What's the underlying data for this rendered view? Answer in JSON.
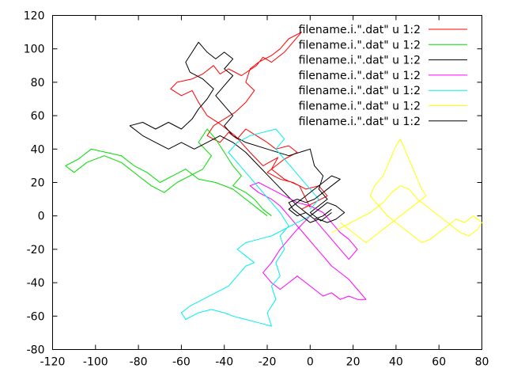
{
  "chart_data": {
    "type": "line",
    "title": "",
    "xlabel": "",
    "ylabel": "",
    "xlim": [
      -120,
      80
    ],
    "ylim": [
      -80,
      120
    ],
    "grid": false,
    "legend_position": "top-right",
    "x_ticks": [
      "-120",
      "-100",
      "-80",
      "-60",
      "-40",
      "-20",
      "0",
      "20",
      "40",
      "60",
      "80"
    ],
    "y_ticks": [
      "-80",
      "-60",
      "-40",
      "-20",
      "0",
      "20",
      "40",
      "60",
      "80",
      "100",
      "120"
    ],
    "series": [
      {
        "name": "filename.i.\".dat\" u 1:2",
        "color": "#ff0000",
        "points": [
          [
            0,
            5
          ],
          [
            -5,
            18
          ],
          [
            -12,
            22
          ],
          [
            -18,
            28
          ],
          [
            -15,
            35
          ],
          [
            -22,
            30
          ],
          [
            -28,
            38
          ],
          [
            -35,
            48
          ],
          [
            -42,
            55
          ],
          [
            -48,
            60
          ],
          [
            -52,
            68
          ],
          [
            -55,
            75
          ],
          [
            -60,
            72
          ],
          [
            -65,
            76
          ],
          [
            -62,
            80
          ],
          [
            -55,
            82
          ],
          [
            -50,
            85
          ],
          [
            -45,
            90
          ],
          [
            -42,
            85
          ],
          [
            -38,
            88
          ],
          [
            -32,
            84
          ],
          [
            -25,
            90
          ],
          [
            -22,
            95
          ],
          [
            -18,
            92
          ],
          [
            -12,
            98
          ],
          [
            -8,
            104
          ],
          [
            -4,
            110
          ],
          [
            -10,
            106
          ],
          [
            -14,
            100
          ],
          [
            -18,
            96
          ],
          [
            -24,
            92
          ],
          [
            -28,
            88
          ],
          [
            -30,
            80
          ],
          [
            -26,
            75
          ],
          [
            -30,
            68
          ],
          [
            -35,
            62
          ],
          [
            -40,
            58
          ],
          [
            -45,
            54
          ],
          [
            -48,
            48
          ],
          [
            -42,
            44
          ],
          [
            -38,
            50
          ],
          [
            -34,
            46
          ],
          [
            -30,
            52
          ],
          [
            -25,
            48
          ],
          [
            -20,
            44
          ],
          [
            -16,
            40
          ],
          [
            -10,
            42
          ],
          [
            -6,
            38
          ],
          [
            -12,
            34
          ],
          [
            -16,
            30
          ],
          [
            -20,
            26
          ],
          [
            -14,
            22
          ],
          [
            -8,
            20
          ],
          [
            -2,
            16
          ],
          [
            4,
            18
          ],
          [
            8,
            12
          ],
          [
            2,
            8
          ],
          [
            -4,
            4
          ]
        ]
      },
      {
        "name": "filename.i.\".dat\" u 1:2",
        "color": "#00dd00",
        "points": [
          [
            -20,
            0
          ],
          [
            -28,
            8
          ],
          [
            -36,
            16
          ],
          [
            -44,
            20
          ],
          [
            -52,
            22
          ],
          [
            -58,
            28
          ],
          [
            -64,
            24
          ],
          [
            -70,
            20
          ],
          [
            -76,
            26
          ],
          [
            -82,
            30
          ],
          [
            -88,
            36
          ],
          [
            -95,
            38
          ],
          [
            -102,
            40
          ],
          [
            -108,
            34
          ],
          [
            -114,
            30
          ],
          [
            -110,
            26
          ],
          [
            -104,
            32
          ],
          [
            -96,
            36
          ],
          [
            -88,
            32
          ],
          [
            -80,
            24
          ],
          [
            -74,
            18
          ],
          [
            -68,
            14
          ],
          [
            -62,
            20
          ],
          [
            -56,
            24
          ],
          [
            -50,
            28
          ],
          [
            -46,
            36
          ],
          [
            -52,
            44
          ],
          [
            -48,
            52
          ],
          [
            -44,
            46
          ],
          [
            -40,
            38
          ],
          [
            -36,
            30
          ],
          [
            -32,
            24
          ],
          [
            -36,
            18
          ],
          [
            -30,
            14
          ],
          [
            -26,
            10
          ],
          [
            -22,
            4
          ],
          [
            -18,
            0
          ]
        ]
      },
      {
        "name": "filename.i.\".dat\" u 1:2",
        "color": "#000000",
        "points": [
          [
            0,
            0
          ],
          [
            -6,
            6
          ],
          [
            -12,
            14
          ],
          [
            -18,
            22
          ],
          [
            -24,
            30
          ],
          [
            -30,
            38
          ],
          [
            -36,
            44
          ],
          [
            -42,
            48
          ],
          [
            -48,
            44
          ],
          [
            -54,
            40
          ],
          [
            -60,
            44
          ],
          [
            -66,
            40
          ],
          [
            -72,
            44
          ],
          [
            -78,
            48
          ],
          [
            -84,
            54
          ],
          [
            -78,
            56
          ],
          [
            -72,
            52
          ],
          [
            -66,
            56
          ],
          [
            -60,
            52
          ],
          [
            -55,
            58
          ],
          [
            -52,
            64
          ],
          [
            -48,
            70
          ],
          [
            -45,
            76
          ],
          [
            -50,
            82
          ],
          [
            -56,
            86
          ],
          [
            -58,
            92
          ],
          [
            -55,
            98
          ],
          [
            -52,
            104
          ],
          [
            -48,
            98
          ],
          [
            -44,
            94
          ],
          [
            -40,
            98
          ],
          [
            -36,
            94
          ],
          [
            -40,
            88
          ],
          [
            -36,
            84
          ],
          [
            -40,
            78
          ],
          [
            -44,
            72
          ],
          [
            -40,
            66
          ],
          [
            -36,
            60
          ],
          [
            -40,
            54
          ],
          [
            -36,
            48
          ],
          [
            -30,
            44
          ],
          [
            -20,
            40
          ],
          [
            -10,
            36
          ],
          [
            0,
            40
          ],
          [
            2,
            30
          ],
          [
            6,
            24
          ],
          [
            4,
            16
          ],
          [
            8,
            10
          ],
          [
            4,
            6
          ],
          [
            0,
            2
          ],
          [
            5,
            -3
          ],
          [
            10,
            2
          ]
        ]
      },
      {
        "name": "filename.i.\".dat\" u 1:2",
        "color": "#ff00ff",
        "points": [
          [
            0,
            0
          ],
          [
            -6,
            -8
          ],
          [
            -10,
            -14
          ],
          [
            -14,
            -20
          ],
          [
            -18,
            -28
          ],
          [
            -22,
            -34
          ],
          [
            -18,
            -40
          ],
          [
            -14,
            -44
          ],
          [
            -10,
            -40
          ],
          [
            -6,
            -36
          ],
          [
            -2,
            -40
          ],
          [
            2,
            -44
          ],
          [
            6,
            -48
          ],
          [
            10,
            -46
          ],
          [
            14,
            -50
          ],
          [
            18,
            -48
          ],
          [
            22,
            -50
          ],
          [
            26,
            -50
          ],
          [
            22,
            -44
          ],
          [
            18,
            -38
          ],
          [
            14,
            -34
          ],
          [
            10,
            -30
          ],
          [
            6,
            -24
          ],
          [
            2,
            -18
          ],
          [
            -2,
            -12
          ],
          [
            -6,
            -6
          ],
          [
            -10,
            0
          ],
          [
            -14,
            6
          ],
          [
            -18,
            10
          ],
          [
            -24,
            14
          ],
          [
            -28,
            18
          ],
          [
            -24,
            20
          ],
          [
            -18,
            16
          ],
          [
            -12,
            12
          ],
          [
            -6,
            8
          ],
          [
            0,
            6
          ],
          [
            6,
            2
          ],
          [
            10,
            -4
          ],
          [
            14,
            -10
          ],
          [
            18,
            -14
          ],
          [
            22,
            -20
          ],
          [
            18,
            -26
          ],
          [
            14,
            -20
          ],
          [
            10,
            -14
          ],
          [
            6,
            -8
          ],
          [
            2,
            -2
          ]
        ]
      },
      {
        "name": "filename.i.\".dat\" u 1:2",
        "color": "#00eeee",
        "points": [
          [
            0,
            0
          ],
          [
            -6,
            -4
          ],
          [
            -12,
            -8
          ],
          [
            -18,
            -12
          ],
          [
            -24,
            -14
          ],
          [
            -30,
            -16
          ],
          [
            -34,
            -20
          ],
          [
            -30,
            -24
          ],
          [
            -26,
            -28
          ],
          [
            -30,
            -30
          ],
          [
            -34,
            -36
          ],
          [
            -38,
            -42
          ],
          [
            -44,
            -46
          ],
          [
            -50,
            -50
          ],
          [
            -56,
            -54
          ],
          [
            -60,
            -58
          ],
          [
            -58,
            -62
          ],
          [
            -52,
            -58
          ],
          [
            -46,
            -56
          ],
          [
            -40,
            -58
          ],
          [
            -36,
            -60
          ],
          [
            -30,
            -62
          ],
          [
            -24,
            -64
          ],
          [
            -18,
            -66
          ],
          [
            -20,
            -58
          ],
          [
            -16,
            -50
          ],
          [
            -18,
            -42
          ],
          [
            -14,
            -36
          ],
          [
            -16,
            -28
          ],
          [
            -12,
            -20
          ],
          [
            -14,
            -12
          ],
          [
            -10,
            -6
          ],
          [
            -14,
            2
          ],
          [
            -18,
            8
          ],
          [
            -22,
            14
          ],
          [
            -26,
            20
          ],
          [
            -30,
            26
          ],
          [
            -34,
            32
          ],
          [
            -38,
            38
          ],
          [
            -34,
            44
          ],
          [
            -28,
            48
          ],
          [
            -22,
            50
          ],
          [
            -16,
            52
          ],
          [
            -12,
            46
          ],
          [
            -16,
            40
          ],
          [
            -12,
            34
          ],
          [
            -8,
            28
          ],
          [
            -4,
            22
          ],
          [
            0,
            16
          ],
          [
            4,
            10
          ],
          [
            0,
            4
          ]
        ]
      },
      {
        "name": "filename.i.\".dat\" u 1:2",
        "color": "#ffff00",
        "points": [
          [
            10,
            -10
          ],
          [
            16,
            -6
          ],
          [
            22,
            -2
          ],
          [
            28,
            2
          ],
          [
            34,
            8
          ],
          [
            38,
            14
          ],
          [
            42,
            18
          ],
          [
            46,
            16
          ],
          [
            50,
            10
          ],
          [
            54,
            6
          ],
          [
            58,
            2
          ],
          [
            62,
            -2
          ],
          [
            66,
            -6
          ],
          [
            70,
            -10
          ],
          [
            74,
            -12
          ],
          [
            78,
            -8
          ],
          [
            80,
            -4
          ],
          [
            76,
            0
          ],
          [
            72,
            -4
          ],
          [
            68,
            -2
          ],
          [
            64,
            -6
          ],
          [
            60,
            -10
          ],
          [
            56,
            -14
          ],
          [
            52,
            -16
          ],
          [
            48,
            -12
          ],
          [
            44,
            -8
          ],
          [
            40,
            -4
          ],
          [
            36,
            0
          ],
          [
            32,
            6
          ],
          [
            28,
            12
          ],
          [
            30,
            18
          ],
          [
            34,
            24
          ],
          [
            36,
            30
          ],
          [
            38,
            36
          ],
          [
            40,
            42
          ],
          [
            42,
            46
          ],
          [
            44,
            40
          ],
          [
            46,
            34
          ],
          [
            48,
            28
          ],
          [
            50,
            22
          ],
          [
            52,
            16
          ],
          [
            54,
            12
          ],
          [
            50,
            8
          ],
          [
            46,
            4
          ],
          [
            42,
            0
          ],
          [
            38,
            -4
          ],
          [
            34,
            -8
          ],
          [
            30,
            -12
          ],
          [
            26,
            -16
          ],
          [
            22,
            -12
          ],
          [
            18,
            -8
          ],
          [
            14,
            -4
          ]
        ]
      },
      {
        "name": "filename.i.\".dat\" u 1:2",
        "color": "#000000",
        "points": [
          [
            0,
            0
          ],
          [
            4,
            4
          ],
          [
            8,
            8
          ],
          [
            12,
            6
          ],
          [
            16,
            2
          ],
          [
            12,
            -2
          ],
          [
            8,
            -4
          ],
          [
            4,
            -2
          ],
          [
            0,
            -4
          ],
          [
            -4,
            0
          ],
          [
            -8,
            4
          ],
          [
            -10,
            8
          ],
          [
            -6,
            10
          ],
          [
            -2,
            8
          ],
          [
            2,
            10
          ],
          [
            6,
            14
          ],
          [
            10,
            18
          ],
          [
            14,
            22
          ],
          [
            10,
            24
          ],
          [
            6,
            20
          ],
          [
            2,
            16
          ],
          [
            -2,
            12
          ],
          [
            -6,
            8
          ],
          [
            -10,
            4
          ],
          [
            -6,
            0
          ],
          [
            -2,
            2
          ],
          [
            2,
            -2
          ],
          [
            6,
            0
          ],
          [
            10,
            4
          ]
        ]
      }
    ]
  }
}
